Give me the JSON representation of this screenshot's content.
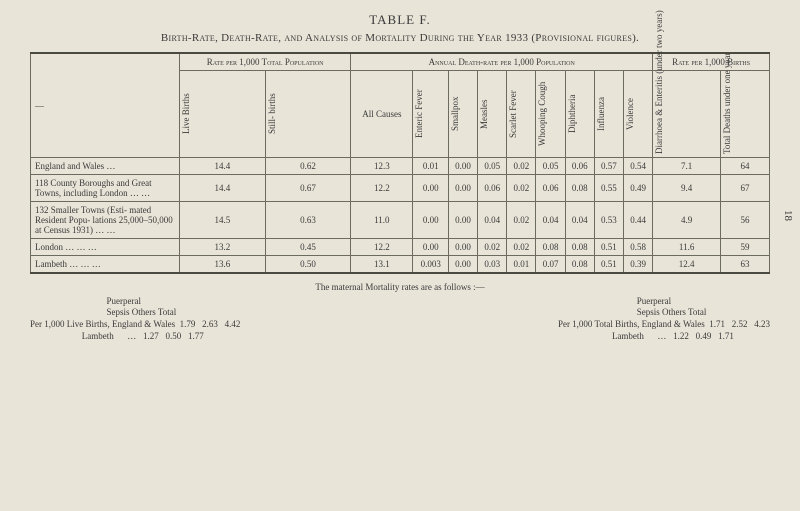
{
  "title_label": "TABLE F.",
  "title_text": "Birth-Rate, Death-Rate, and Analysis of Mortality During the Year 1933 (Provisional figures).",
  "side_page_number": "18",
  "headers": {
    "dash": "—",
    "rate_per_1000_pop": "Rate per 1,000 Total Population",
    "annual_death_rate": "Annual Death-rate per 1,000 Population",
    "rate_per_1000_births": "Rate per 1,000 Births",
    "live_births": "Live Births",
    "still_births": "Still- births",
    "all_causes": "All Causes",
    "enteric": "Enteric Fever",
    "smallpox": "Smallpox",
    "measles": "Measles",
    "scarlet": "Scarlet Fever",
    "whooping": "Whooping Cough",
    "diphtheria": "Diphtheria",
    "influenza": "Influenza",
    "violence": "Violence",
    "diarrhoea": "Diarrhoea & Enteritis (under two years)",
    "total_deaths": "Total Deaths under one year"
  },
  "rows": [
    {
      "label": "England and Wales   …",
      "cells": [
        "14.4",
        "0.62",
        "12.3",
        "0.01",
        "0.00",
        "0.05",
        "0.02",
        "0.05",
        "0.06",
        "0.57",
        "0.54",
        "7.1",
        "64"
      ]
    },
    {
      "label": "118 County Boroughs and Great Towns, including London   …   …",
      "cells": [
        "14.4",
        "0.67",
        "12.2",
        "0.00",
        "0.00",
        "0.06",
        "0.02",
        "0.06",
        "0.08",
        "0.55",
        "0.49",
        "9.4",
        "67"
      ]
    },
    {
      "label": "132 Smaller Towns (Esti- mated Resident Popu- lations 25,000–50,000 at Census 1931)   …   …",
      "cells": [
        "14.5",
        "0.63",
        "11.0",
        "0.00",
        "0.00",
        "0.04",
        "0.02",
        "0.04",
        "0.04",
        "0.53",
        "0.44",
        "4.9",
        "56"
      ]
    },
    {
      "label": "London   …   …   …",
      "cells": [
        "13.2",
        "0.45",
        "12.2",
        "0.00",
        "0.00",
        "0.02",
        "0.02",
        "0.08",
        "0.08",
        "0.51",
        "0.58",
        "11.6",
        "59"
      ]
    },
    {
      "label": "Lambeth …   …   …",
      "cells": [
        "13.6",
        "0.50",
        "13.1",
        "0.003",
        "0.00",
        "0.03",
        "0.01",
        "0.07",
        "0.08",
        "0.51",
        "0.39",
        "12.4",
        "63"
      ]
    }
  ],
  "footer": {
    "title": "The maternal Mortality rates are as follows :—",
    "left_block": "                                  Puerperal\n                                  Sepsis Others Total\nPer 1,000 Live Births, England & Wales  1.79   2.63   4.42\n                       Lambeth      …   1.27   0.50   1.77",
    "right_block": "                                   Puerperal\n                                   Sepsis Others Total\nPer 1,000 Total Births, England & Wales  1.71   2.52   4.23\n                        Lambeth      …   1.22   0.49   1.71"
  },
  "colors": {
    "bg": "#e8e4d8",
    "text": "#3a3a3a",
    "border": "#6b6b5f"
  }
}
